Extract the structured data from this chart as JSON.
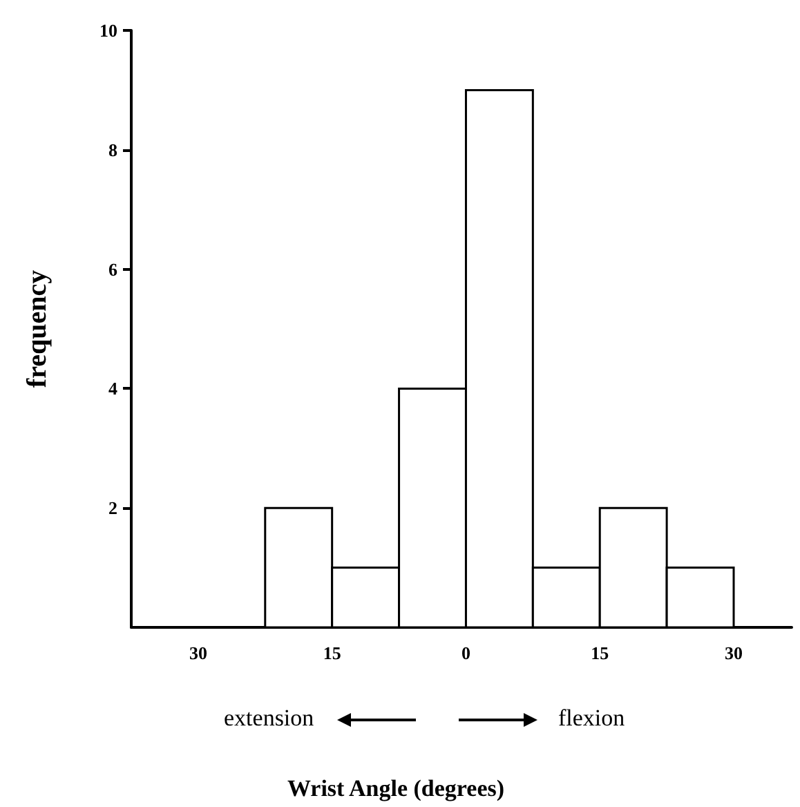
{
  "chart_data": {
    "type": "histogram",
    "xlabel": "Wrist Angle (degrees)",
    "ylabel": "frequency",
    "bins": [
      -22.5,
      -15,
      -7.5,
      0,
      7.5,
      15,
      22.5,
      30
    ],
    "values": [
      2,
      1,
      4,
      9,
      1,
      2,
      1
    ],
    "color": "#ffffff",
    "xlim": [
      -37.5,
      36.5
    ],
    "xticks": [
      {
        "value": -30,
        "label": "30"
      },
      {
        "value": -15,
        "label": "15"
      },
      0,
      15,
      30
    ],
    "ylim": [
      0,
      10
    ],
    "yticks": [
      2,
      4,
      6,
      8,
      10
    ],
    "grid": false,
    "annotations": [
      "extension",
      "flexion"
    ]
  }
}
